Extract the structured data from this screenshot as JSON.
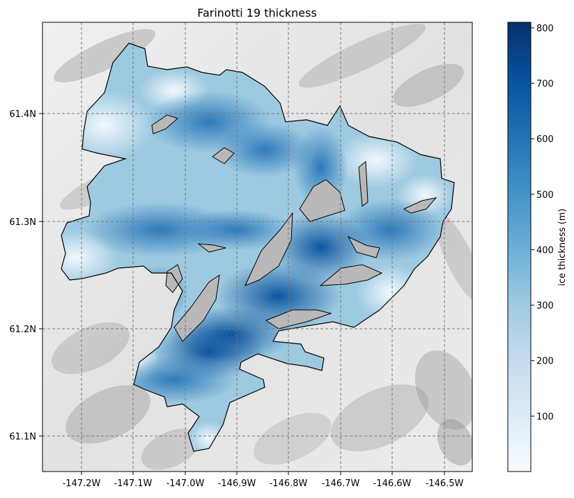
{
  "title": "Farinotti 19 thickness",
  "map": {
    "x_ticks": [
      "-147.2W",
      "-147.1W",
      "-147.0W",
      "-146.9W",
      "-146.8W",
      "-146.7W",
      "-146.6W",
      "-146.5W"
    ],
    "y_ticks": [
      "61.4N",
      "61.3N",
      "61.2N",
      "61.1N"
    ],
    "grid": true,
    "gridline_style": "dashed",
    "background": "hillshade terrain",
    "glacier_outline_color": "#000000"
  },
  "colorbar": {
    "label": "ice thickness (m)",
    "ticks": [
      "100",
      "200",
      "300",
      "400",
      "500",
      "600",
      "700",
      "800"
    ],
    "min": 0,
    "max": 810,
    "colormap": "Blues",
    "color_low": "#f7fbff",
    "color_high": "#08306b"
  },
  "chart_data": {
    "type": "heatmap",
    "title": "Farinotti 19 thickness",
    "x_ticks": [
      -147.2,
      -147.1,
      -147.0,
      -146.9,
      -146.8,
      -146.7,
      -146.6,
      -146.5
    ],
    "y_ticks": [
      61.4,
      61.3,
      61.2,
      61.1
    ],
    "colorbar_label": "ice thickness (m)",
    "colorbar_range": [
      0,
      810
    ],
    "colorbar_ticks": [
      100,
      200,
      300,
      400,
      500,
      600,
      700,
      800
    ]
  }
}
